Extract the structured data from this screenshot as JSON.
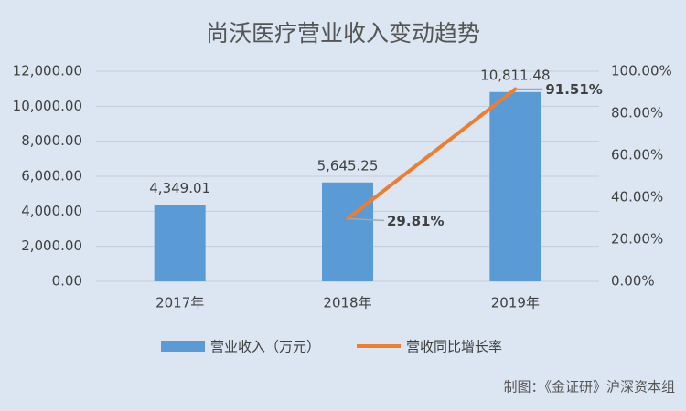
{
  "chart_data": {
    "type": "bar-line",
    "title": "尚沃医疗营业收入变动趋势",
    "categories": [
      "2017年",
      "2018年",
      "2019年"
    ],
    "series": [
      {
        "name": "营业收入（万元）",
        "type": "bar",
        "color": "#5b9bd5",
        "values": [
          4349.01,
          5645.25,
          10811.48
        ],
        "value_labels": [
          "4,349.01",
          "5,645.25",
          "10,811.48"
        ]
      },
      {
        "name": "营收同比增长率",
        "type": "line",
        "axis": "y2",
        "color": "#ed7d31",
        "values": [
          null,
          29.81,
          91.51
        ],
        "value_labels": [
          null,
          "29.81%",
          "91.51%"
        ]
      }
    ],
    "ylim": [
      0,
      12000
    ],
    "yticks": [
      {
        "value": 0,
        "label": "0.00"
      },
      {
        "value": 2000,
        "label": "2,000.00"
      },
      {
        "value": 4000,
        "label": "4,000.00"
      },
      {
        "value": 6000,
        "label": "6,000.00"
      },
      {
        "value": 8000,
        "label": "8,000.00"
      },
      {
        "value": 10000,
        "label": "10,000.00"
      },
      {
        "value": 12000,
        "label": "12,000.00"
      }
    ],
    "y2lim": [
      0,
      100
    ],
    "y2ticks": [
      {
        "value": 0,
        "label": "0.00%"
      },
      {
        "value": 20,
        "label": "20.00%"
      },
      {
        "value": 40,
        "label": "40.00%"
      },
      {
        "value": 60,
        "label": "60.00%"
      },
      {
        "value": 80,
        "label": "80.00%"
      },
      {
        "value": 100,
        "label": "100.00%"
      }
    ],
    "grid": true,
    "legend": "bottom",
    "source": "制图：《金证研》沪深资本组"
  }
}
